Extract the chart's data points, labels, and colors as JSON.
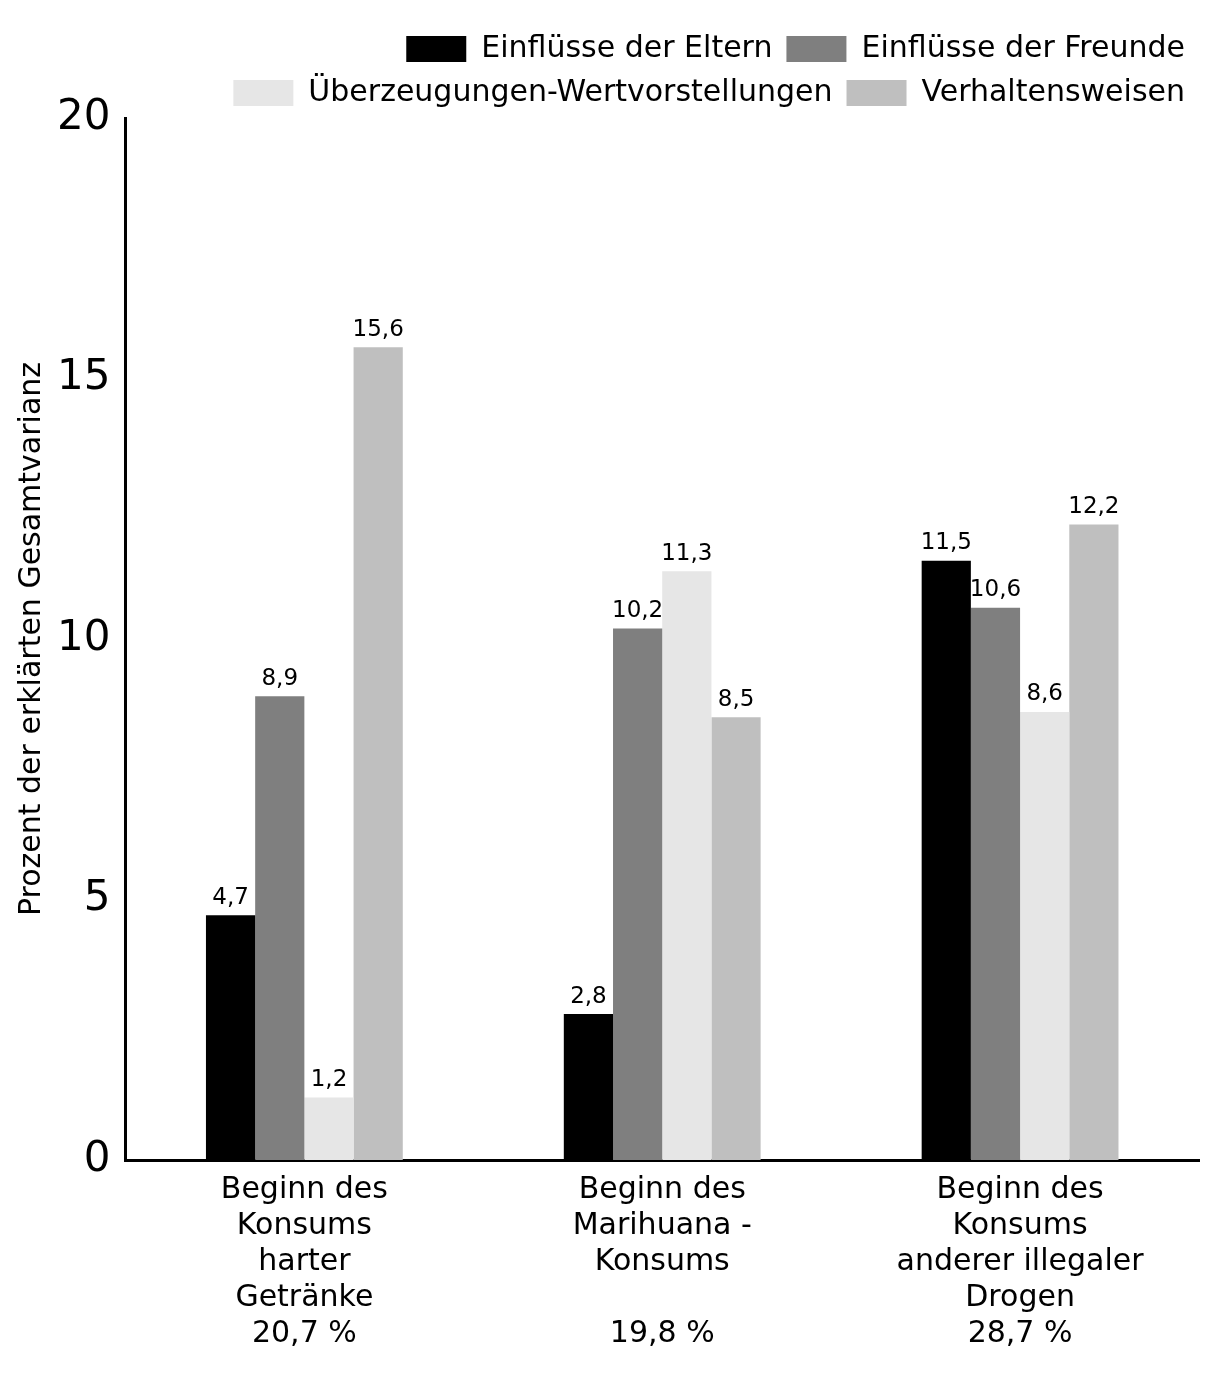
{
  "chart_data": {
    "type": "bar",
    "ylabel": "Prozent der erklärten Gesamtvarianz",
    "categories": [
      "Beginn des\nKonsums\nharter\nGetränke\n20,7 %",
      "Beginn des\nMarihuana -\nKonsums\n\n19,8 %",
      "Beginn des\nKonsums\nanderer illegaler\nDrogen\n28,7 %"
    ],
    "series": [
      {
        "name": "Einflüsse der Eltern",
        "color": "#000000",
        "values": [
          4.7,
          2.8,
          11.5
        ],
        "value_labels": [
          "4,7",
          "2,8",
          "11,5"
        ]
      },
      {
        "name": "Einflüsse der Freunde",
        "color": "#7f7f7f",
        "values": [
          8.9,
          10.2,
          10.6
        ],
        "value_labels": [
          "8,9",
          "10,2",
          "10,6"
        ]
      },
      {
        "name": "Überzeugungen-Wertvorstellungen",
        "color": "#e6e6e6",
        "values": [
          1.2,
          11.3,
          8.6
        ],
        "value_labels": [
          "1,2",
          "11,3",
          "8,6"
        ]
      },
      {
        "name": "Verhaltensweisen",
        "color": "#bfbfbf",
        "values": [
          15.6,
          8.5,
          12.2
        ],
        "value_labels": [
          "15,6",
          "8,5",
          "12,2"
        ]
      }
    ],
    "ylim": [
      0,
      20
    ],
    "yticks": [
      0,
      5,
      10,
      15,
      20
    ],
    "grid": false,
    "legend": "top right"
  }
}
